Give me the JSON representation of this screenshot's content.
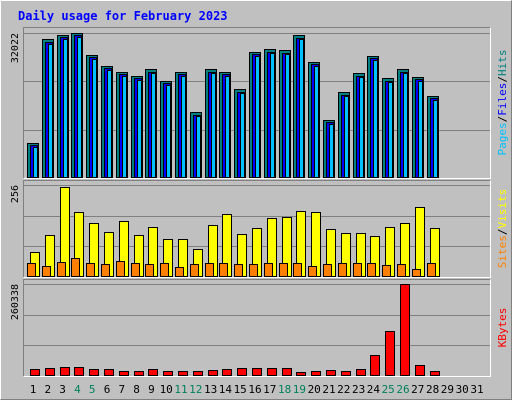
{
  "chart_data": {
    "type": "bar",
    "title": "Daily usage for February 2023",
    "colors": {
      "background": "#c0c0c0",
      "title": "#0000ff",
      "hits": "#008080",
      "files": "#0000ff",
      "pages": "#00c0ff",
      "visits": "#ffff00",
      "sites": "#ff8000",
      "kbytes": "#ff0000",
      "weekend_label": "#00805c",
      "weekday_label": "#000000"
    },
    "x": [
      1,
      2,
      3,
      4,
      5,
      6,
      7,
      8,
      9,
      10,
      11,
      12,
      13,
      14,
      15,
      16,
      17,
      18,
      19,
      20,
      21,
      22,
      23,
      24,
      25,
      26,
      27,
      28,
      29,
      30,
      31
    ],
    "weekend_days": [
      4,
      5,
      11,
      12,
      18,
      19,
      25,
      26
    ],
    "panels": [
      {
        "id": "hits-files-pages",
        "scale_label": "32022",
        "ymax": 32022,
        "ylabel_parts": [
          "Pages",
          "Files",
          "Hits"
        ],
        "series": [
          {
            "name": "Hits",
            "color": "#008080",
            "values": [
              7700,
              30600,
              31600,
              32100,
              27200,
              24800,
              23400,
              22600,
              24000,
              21400,
              23400,
              14500,
              24000,
              23500,
              19600,
              27900,
              28400,
              28200,
              31500,
              25700,
              12800,
              18900,
              23100,
              27000,
              22000,
              24000,
              22300,
              18200,
              null,
              null,
              null
            ]
          },
          {
            "name": "Files",
            "color": "#0000ff",
            "values": [
              7300,
              30100,
              31100,
              31600,
              26700,
              24300,
              22900,
              22100,
              23500,
              20900,
              22900,
              14000,
              23500,
              23000,
              19100,
              27400,
              27900,
              27700,
              31000,
              25200,
              12300,
              18400,
              22600,
              26500,
              21500,
              23500,
              21800,
              17700,
              null,
              null,
              null
            ]
          },
          {
            "name": "Pages",
            "color": "#00c0ff",
            "values": [
              6900,
              29700,
              30700,
              31200,
              26300,
              23900,
              22500,
              21700,
              23100,
              20500,
              22500,
              13600,
              23100,
              22600,
              18700,
              27000,
              27500,
              27300,
              30600,
              24800,
              11900,
              18000,
              22200,
              26100,
              21100,
              23100,
              21400,
              17300,
              null,
              null,
              null
            ]
          }
        ]
      },
      {
        "id": "visits-sites",
        "scale_label": "256",
        "ymax": 256,
        "ylabel_parts": [
          "Sites",
          "Visits"
        ],
        "series": [
          {
            "name": "Visits",
            "color": "#ffff00",
            "values": [
              70,
              118,
              250,
              180,
              150,
              124,
              155,
              118,
              138,
              105,
              105,
              77,
              145,
              175,
              120,
              137,
              165,
              168,
              185,
              180,
              133,
              123,
              123,
              115,
              140,
              150,
              195,
              135,
              null,
              null,
              null
            ]
          },
          {
            "name": "Sites",
            "color": "#ff8000",
            "values": [
              40,
              30,
              42,
              52,
              38,
              35,
              45,
              38,
              35,
              38,
              28,
              37,
              38,
              38,
              35,
              37,
              40,
              40,
              38,
              30,
              36,
              38,
              38,
              38,
              32,
              37,
              22,
              40,
              null,
              null,
              null
            ]
          }
        ]
      },
      {
        "id": "kbytes",
        "scale_label": "260338",
        "ymax": 260338,
        "ylabel_parts": [
          "KBytes"
        ],
        "series": [
          {
            "name": "KBytes",
            "color": "#ff0000",
            "values": [
              21000,
              23000,
              26000,
              26000,
              21000,
              19000,
              15000,
              14000,
              21000,
              14000,
              13000,
              14000,
              18000,
              21000,
              22000,
              22000,
              23000,
              23000,
              11000,
              15000,
              16000,
              15000,
              21000,
              60000,
              127000,
              260338,
              31000,
              13000,
              null,
              null,
              null
            ]
          }
        ]
      }
    ]
  }
}
